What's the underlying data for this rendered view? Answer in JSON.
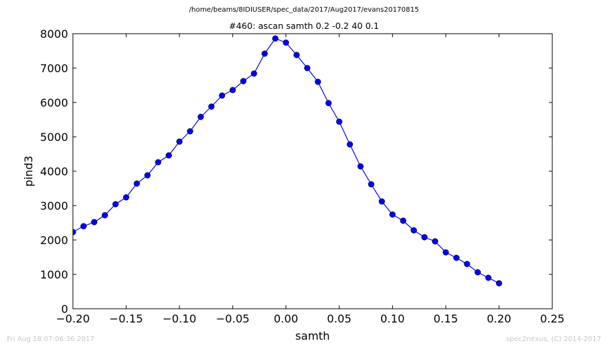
{
  "chart_data": {
    "type": "line",
    "suptitle": "/home/beams/8IDIUSER/spec_data/2017/Aug2017/evans20170815",
    "title": "#460: ascan  samth 0.2 -0.2  40 0.1",
    "xlabel": "samth",
    "ylabel": "pind3",
    "xlim": [
      -0.2,
      0.25
    ],
    "ylim": [
      0,
      8000
    ],
    "xticks": [
      "−0.20",
      "−0.15",
      "−0.10",
      "−0.05",
      "0.00",
      "0.05",
      "0.10",
      "0.15",
      "0.20",
      "0.25"
    ],
    "xtick_values": [
      -0.2,
      -0.15,
      -0.1,
      -0.05,
      0.0,
      0.05,
      0.1,
      0.15,
      0.2,
      0.25
    ],
    "yticks": [
      "0",
      "1000",
      "2000",
      "3000",
      "4000",
      "5000",
      "6000",
      "7000",
      "8000"
    ],
    "ytick_values": [
      0,
      1000,
      2000,
      3000,
      4000,
      5000,
      6000,
      7000,
      8000
    ],
    "grid": false,
    "series": [
      {
        "color": "#0000ff",
        "x": [
          -0.2,
          -0.19,
          -0.18,
          -0.17,
          -0.16,
          -0.15,
          -0.14,
          -0.13,
          -0.12,
          -0.11,
          -0.1,
          -0.09,
          -0.08,
          -0.07,
          -0.06,
          -0.05,
          -0.04,
          -0.03,
          -0.02,
          -0.01,
          0.0,
          0.01,
          0.02,
          0.03,
          0.04,
          0.05,
          0.06,
          0.07,
          0.08,
          0.09,
          0.1,
          0.11,
          0.12,
          0.13,
          0.14,
          0.15,
          0.16,
          0.17,
          0.18,
          0.19,
          0.2
        ],
        "y": [
          2230,
          2400,
          2520,
          2720,
          3040,
          3240,
          3640,
          3880,
          4260,
          4460,
          4860,
          5160,
          5580,
          5880,
          6200,
          6360,
          6620,
          6840,
          7420,
          7860,
          7740,
          7380,
          7000,
          6600,
          5980,
          5440,
          4780,
          4140,
          3620,
          3120,
          2740,
          2560,
          2280,
          2080,
          1960,
          1640,
          1480,
          1300,
          1060,
          900,
          740
        ]
      }
    ]
  },
  "footer": {
    "timestamp": "Fri Aug 18 07:06:36 2017",
    "credit": "spec2nexus, (C) 2014-2017"
  }
}
